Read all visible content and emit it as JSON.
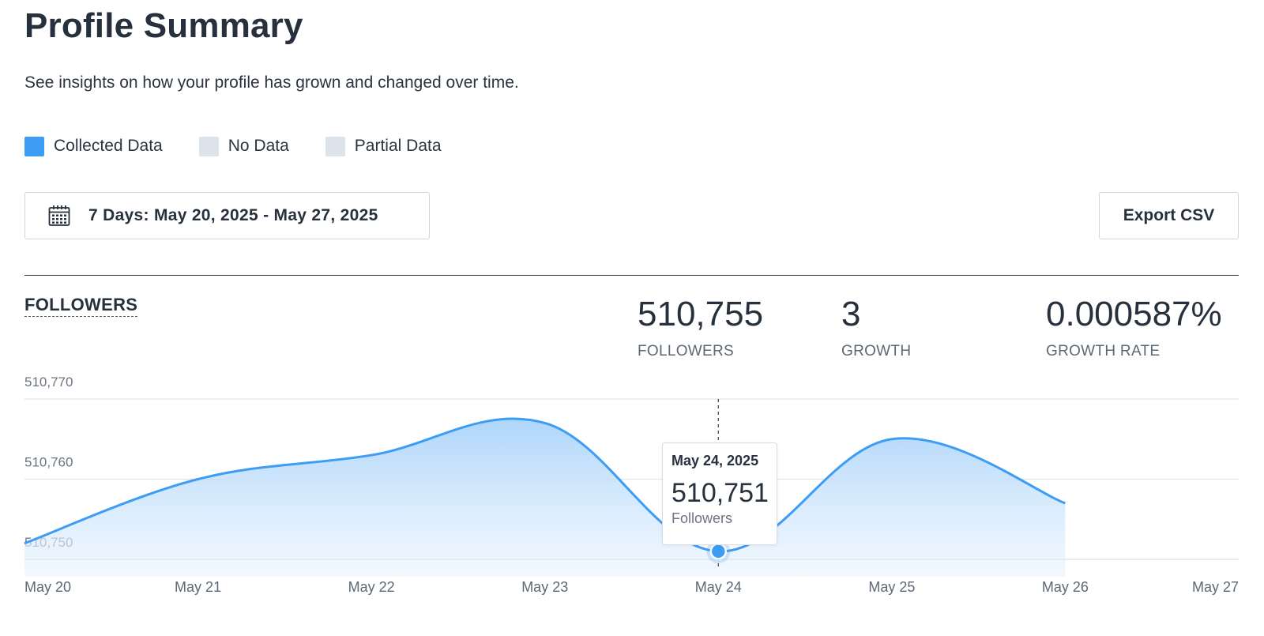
{
  "header": {
    "title": "Profile Summary",
    "subtitle": "See insights on how your profile has grown and changed over time."
  },
  "legend": [
    {
      "label": "Collected Data",
      "color": "#3d9cf3"
    },
    {
      "label": "No Data",
      "color": "#dde3ea"
    },
    {
      "label": "Partial Data",
      "color": "#dde3ea"
    }
  ],
  "toolbar": {
    "date_range_label": "7 Days: May 20, 2025 - May 27, 2025",
    "calendar_icon": "calendar-icon",
    "export_label": "Export CSV"
  },
  "section": {
    "title": "FOLLOWERS"
  },
  "stats": [
    {
      "value": "510,755",
      "label": "FOLLOWERS"
    },
    {
      "value": "3",
      "label": "GROWTH"
    },
    {
      "value": "0.000587%",
      "label": "GROWTH RATE"
    }
  ],
  "tooltip": {
    "date": "May 24, 2025",
    "value": "510,751",
    "label": "Followers"
  },
  "colors": {
    "accent": "#3d9cf3",
    "text": "#27313e",
    "grid": "#dde3ea"
  },
  "chart_data": {
    "type": "area",
    "categories": [
      "May 20",
      "May 21",
      "May 22",
      "May 23",
      "May 24",
      "May 25",
      "May 26",
      "May 27"
    ],
    "x": [
      "May 20",
      "May 21",
      "May 22",
      "May 23",
      "May 24",
      "May 25",
      "May 26"
    ],
    "series": [
      {
        "values": [
          510752,
          510760,
          510763,
          510767,
          510751,
          510765,
          510757
        ]
      }
    ],
    "y_ticks": [
      "510,750",
      "510,760",
      "510,770"
    ],
    "ylim": [
      510749,
      510770
    ],
    "grid": true,
    "highlighted_index": 4
  }
}
